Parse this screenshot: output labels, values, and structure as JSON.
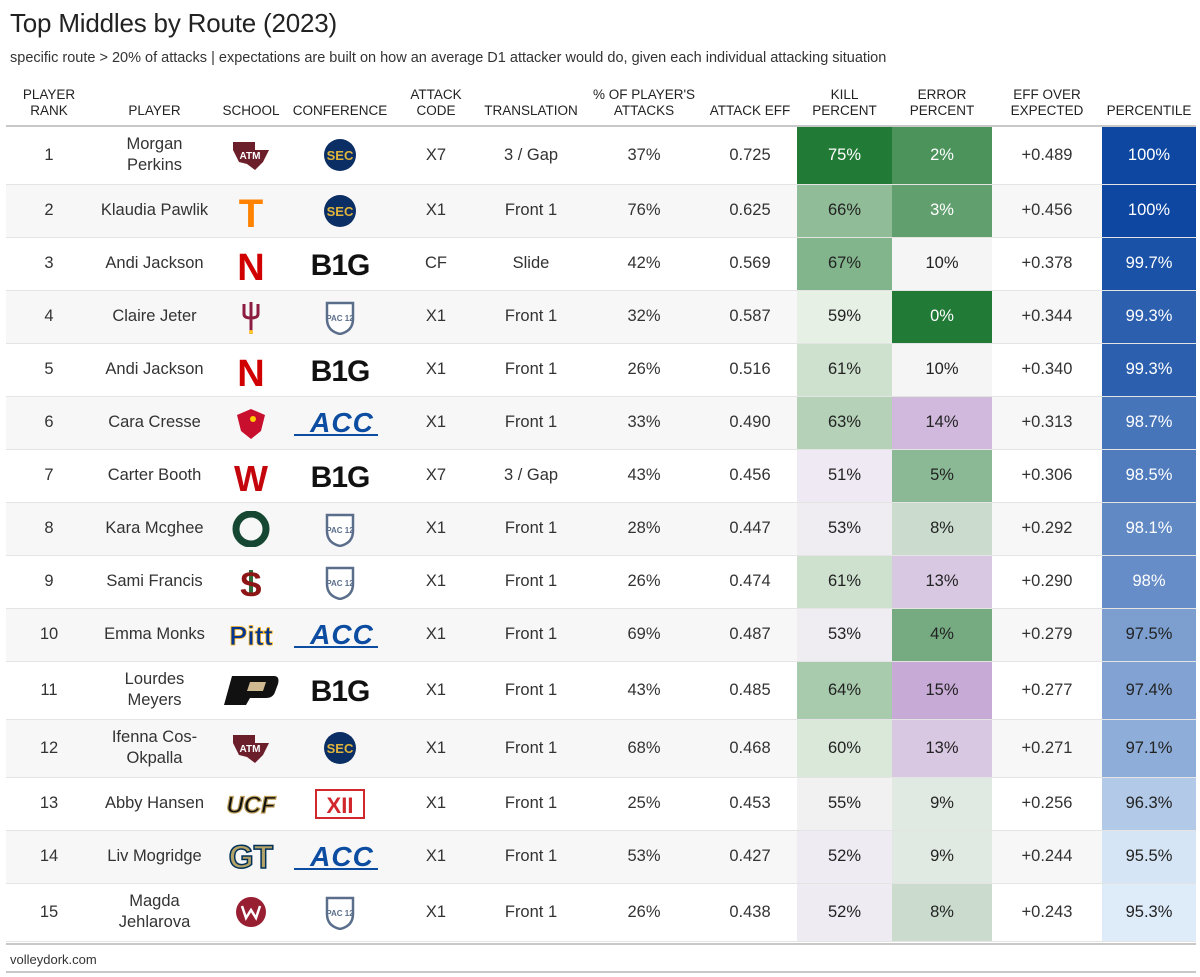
{
  "title": "Top Middles by Route (2023)",
  "subtitle": "specific route > 20% of attacks | expectations are built on how an average D1 attacker would do, given each individual attacking situation",
  "source": "volleydork.com",
  "chart_data": {
    "type": "table",
    "columns": [
      {
        "key": "rank",
        "label": "Player Rank"
      },
      {
        "key": "player",
        "label": "Player"
      },
      {
        "key": "school",
        "label": "School"
      },
      {
        "key": "conference",
        "label": "Conference"
      },
      {
        "key": "code",
        "label": "Attack Code"
      },
      {
        "key": "translation",
        "label": "Translation"
      },
      {
        "key": "pct_attacks",
        "label": "% of Player's Attacks"
      },
      {
        "key": "eff",
        "label": "Attack Eff"
      },
      {
        "key": "kill_pct",
        "label": "Kill Percent"
      },
      {
        "key": "error_pct",
        "label": "Error Percent"
      },
      {
        "key": "eff_over_exp",
        "label": "Eff Over Expected"
      },
      {
        "key": "percentile",
        "label": "Percentile"
      }
    ],
    "rows": [
      {
        "rank": "1",
        "player": "Morgan Perkins",
        "school": "texas-am-logo",
        "conference": "sec-logo",
        "code": "X7",
        "translation": "3 / Gap",
        "pct_attacks": "37%",
        "eff": "0.725",
        "kill_pct": "75%",
        "error_pct": "2%",
        "eff_over_exp": "+0.489",
        "percentile": "100%"
      },
      {
        "rank": "2",
        "player": "Klaudia Pawlik",
        "school": "tennessee-logo",
        "conference": "sec-logo",
        "code": "X1",
        "translation": "Front 1",
        "pct_attacks": "76%",
        "eff": "0.625",
        "kill_pct": "66%",
        "error_pct": "3%",
        "eff_over_exp": "+0.456",
        "percentile": "100%"
      },
      {
        "rank": "3",
        "player": "Andi Jackson",
        "school": "nebraska-logo",
        "conference": "big10-logo",
        "code": "CF",
        "translation": "Slide",
        "pct_attacks": "42%",
        "eff": "0.569",
        "kill_pct": "67%",
        "error_pct": "10%",
        "eff_over_exp": "+0.378",
        "percentile": "99.7%"
      },
      {
        "rank": "4",
        "player": "Claire Jeter",
        "school": "arizona-state-logo",
        "conference": "pac12-logo",
        "code": "X1",
        "translation": "Front 1",
        "pct_attacks": "32%",
        "eff": "0.587",
        "kill_pct": "59%",
        "error_pct": "0%",
        "eff_over_exp": "+0.344",
        "percentile": "99.3%"
      },
      {
        "rank": "5",
        "player": "Andi Jackson",
        "school": "nebraska-logo",
        "conference": "big10-logo",
        "code": "X1",
        "translation": "Front 1",
        "pct_attacks": "26%",
        "eff": "0.516",
        "kill_pct": "61%",
        "error_pct": "10%",
        "eff_over_exp": "+0.340",
        "percentile": "99.3%"
      },
      {
        "rank": "6",
        "player": "Cara Cresse",
        "school": "louisville-logo",
        "conference": "acc-logo",
        "code": "X1",
        "translation": "Front 1",
        "pct_attacks": "33%",
        "eff": "0.490",
        "kill_pct": "63%",
        "error_pct": "14%",
        "eff_over_exp": "+0.313",
        "percentile": "98.7%"
      },
      {
        "rank": "7",
        "player": "Carter Booth",
        "school": "wisconsin-logo",
        "conference": "big10-logo",
        "code": "X7",
        "translation": "3 / Gap",
        "pct_attacks": "43%",
        "eff": "0.456",
        "kill_pct": "51%",
        "error_pct": "5%",
        "eff_over_exp": "+0.306",
        "percentile": "98.5%"
      },
      {
        "rank": "8",
        "player": "Kara Mcghee",
        "school": "oregon-logo",
        "conference": "pac12-logo",
        "code": "X1",
        "translation": "Front 1",
        "pct_attacks": "28%",
        "eff": "0.447",
        "kill_pct": "53%",
        "error_pct": "8%",
        "eff_over_exp": "+0.292",
        "percentile": "98.1%"
      },
      {
        "rank": "9",
        "player": "Sami Francis",
        "school": "stanford-logo",
        "conference": "pac12-logo",
        "code": "X1",
        "translation": "Front 1",
        "pct_attacks": "26%",
        "eff": "0.474",
        "kill_pct": "61%",
        "error_pct": "13%",
        "eff_over_exp": "+0.290",
        "percentile": "98%"
      },
      {
        "rank": "10",
        "player": "Emma Monks",
        "school": "pitt-logo",
        "conference": "acc-logo",
        "code": "X1",
        "translation": "Front 1",
        "pct_attacks": "69%",
        "eff": "0.487",
        "kill_pct": "53%",
        "error_pct": "4%",
        "eff_over_exp": "+0.279",
        "percentile": "97.5%"
      },
      {
        "rank": "11",
        "player": "Lourdes Meyers",
        "school": "purdue-logo",
        "conference": "big10-logo",
        "code": "X1",
        "translation": "Front 1",
        "pct_attacks": "43%",
        "eff": "0.485",
        "kill_pct": "64%",
        "error_pct": "15%",
        "eff_over_exp": "+0.277",
        "percentile": "97.4%"
      },
      {
        "rank": "12",
        "player": "Ifenna Cos-Okpalla",
        "school": "texas-am-logo",
        "conference": "sec-logo",
        "code": "X1",
        "translation": "Front 1",
        "pct_attacks": "68%",
        "eff": "0.468",
        "kill_pct": "60%",
        "error_pct": "13%",
        "eff_over_exp": "+0.271",
        "percentile": "97.1%"
      },
      {
        "rank": "13",
        "player": "Abby Hansen",
        "school": "ucf-logo",
        "conference": "big12-logo",
        "code": "X1",
        "translation": "Front 1",
        "pct_attacks": "25%",
        "eff": "0.453",
        "kill_pct": "55%",
        "error_pct": "9%",
        "eff_over_exp": "+0.256",
        "percentile": "96.3%"
      },
      {
        "rank": "14",
        "player": "Liv Mogridge",
        "school": "georgia-tech-logo",
        "conference": "acc-logo",
        "code": "X1",
        "translation": "Front 1",
        "pct_attacks": "53%",
        "eff": "0.427",
        "kill_pct": "52%",
        "error_pct": "9%",
        "eff_over_exp": "+0.244",
        "percentile": "95.5%"
      },
      {
        "rank": "15",
        "player": "Magda Jehlarova",
        "school": "washington-state-logo",
        "conference": "pac12-logo",
        "code": "X1",
        "translation": "Front 1",
        "pct_attacks": "26%",
        "eff": "0.438",
        "kill_pct": "52%",
        "error_pct": "8%",
        "eff_over_exp": "+0.243",
        "percentile": "95.3%"
      }
    ],
    "kill_scale": {
      "min": 51,
      "mid": 58,
      "max": 75,
      "low_color": "#efe9f3",
      "mid_color": "#f2f7ef",
      "high_color": "#217a35"
    },
    "error_scale": {
      "min": 0,
      "mid": 10,
      "max": 15,
      "low_color": "#217a35",
      "mid_color": "#f5f5f5",
      "high_color": "#c7aad6"
    },
    "percentile_scale": {
      "min": 95.3,
      "max": 100,
      "low_color": "#deecfa",
      "high_color": "#0d47a1"
    }
  },
  "player_lines": {
    "1": [
      "Morgan",
      "Perkins"
    ],
    "11": [
      "Lourdes",
      "Meyers"
    ],
    "12": [
      "Ifenna Cos-",
      "Okpalla"
    ],
    "15": [
      "Magda",
      "Jehlarova"
    ]
  },
  "logo_text": {
    "sec-logo": "SEC",
    "big10-logo": "B1G",
    "acc-logo": "ACC",
    "pac12-logo": "PAC 12",
    "big12-logo": "XII",
    "texas-am-logo": "ATM",
    "tennessee-logo": "T",
    "nebraska-logo": "N",
    "wisconsin-logo": "W",
    "oregon-logo": "O",
    "stanford-logo": "S",
    "pitt-logo": "Pitt",
    "purdue-logo": "P",
    "ucf-logo": "UCF",
    "georgia-tech-logo": "GT"
  },
  "colors": {
    "sec": "#0b2f64",
    "sec_gold": "#e0b43b",
    "acc": "#0c4da2",
    "texas_am": "#6a1f2b",
    "tennessee": "#ff8200",
    "nebraska": "#d00000",
    "wisconsin": "#c5050c",
    "oregon": "#154733",
    "stanford": "#8c1515",
    "pitt": "#003594",
    "pitt_gold": "#ffb81c",
    "purdue_gold": "#cfb991",
    "ucf_gold": "#bb9d57",
    "gt_gold": "#b3a369",
    "wsu": "#981e32",
    "big12": "#d1282e",
    "asu": "#8c1d40",
    "asu_gold": "#ffc627",
    "louisville": "#c8102e"
  }
}
